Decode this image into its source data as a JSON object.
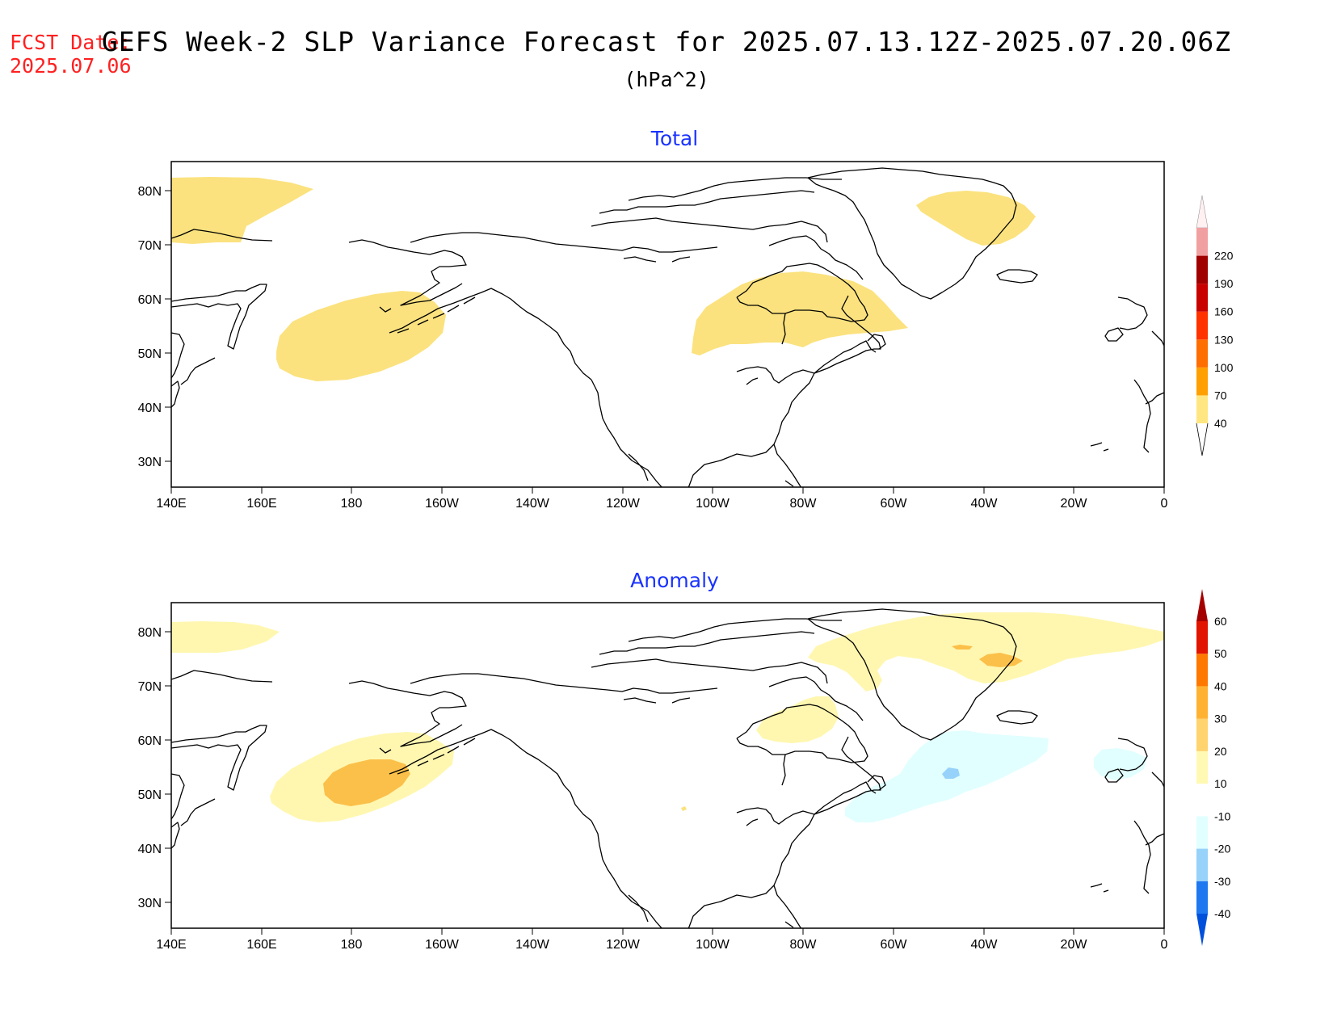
{
  "header": {
    "fcst_label": "FCST Date:",
    "fcst_date": "2025.07.06",
    "title": "GEFS Week-2 SLP Variance Forecast for 2025.07.13.12Z-2025.07.20.06Z",
    "units": "(hPa^2)"
  },
  "axes": {
    "lon_labels": [
      "140E",
      "160E",
      "180",
      "160W",
      "140W",
      "120W",
      "100W",
      "80W",
      "60W",
      "40W",
      "20W",
      "0"
    ],
    "lat_labels": [
      "80N",
      "70N",
      "60N",
      "50N",
      "40N",
      "30N"
    ],
    "lon_range": [
      "140E",
      "0"
    ],
    "lat_range": [
      "25N",
      "85N"
    ]
  },
  "panels": [
    {
      "id": "total",
      "title": "Total",
      "colorbar": {
        "levels": [
          "40",
          "70",
          "100",
          "130",
          "160",
          "190",
          "220"
        ],
        "colors": [
          "#ffe680",
          "#ffa000",
          "#ff6e00",
          "#ff3200",
          "#c80000",
          "#a00000",
          "#f0a0a0",
          "#fff0f0"
        ]
      },
      "shaded_regions": [
        {
          "label": "north Pacific / Bering",
          "class": "40-70",
          "color": "#fbe27e"
        },
        {
          "label": "Arctic Ocean near 140E-165E",
          "class": "40-70",
          "color": "#fbe27e"
        },
        {
          "label": "Hudson Bay / central Canada",
          "class": "40-70",
          "color": "#fbe27e"
        },
        {
          "label": "Greenland",
          "class": "40-70",
          "color": "#fbe27e"
        }
      ]
    },
    {
      "id": "anomaly",
      "title": "Anomaly",
      "colorbar": {
        "levels": [
          "-40",
          "-30",
          "-20",
          "-10",
          "10",
          "20",
          "30",
          "40",
          "50",
          "60"
        ],
        "colors": [
          "#0050dc",
          "#1e78f0",
          "#96d2fa",
          "#e1ffff",
          "#ffffff",
          "#fff9b4",
          "#ffd36e",
          "#ffb232",
          "#ff7800",
          "#e11400",
          "#a50000"
        ]
      },
      "shaded_regions": [
        {
          "label": "north Pacific",
          "class": "10-20",
          "color": "#fff7b0"
        },
        {
          "label": "north Pacific core",
          "class": "20-30",
          "color": "#fbc04a"
        },
        {
          "label": "Greenland / Baffin",
          "class": "10-20",
          "color": "#fff7b0"
        },
        {
          "label": "Greenland core",
          "class": "20-30",
          "color": "#fbc04a"
        },
        {
          "label": "Hudson Bay",
          "class": "10-20",
          "color": "#fff7b0"
        },
        {
          "label": "western North Atlantic",
          "class": "-20--10",
          "color": "#e1ffff"
        },
        {
          "label": "Newfoundland core",
          "class": "-30--20",
          "color": "#96d2fa"
        },
        {
          "label": "eastern Atlantic near Ireland",
          "class": "-20--10",
          "color": "#e1ffff"
        }
      ]
    }
  ]
}
